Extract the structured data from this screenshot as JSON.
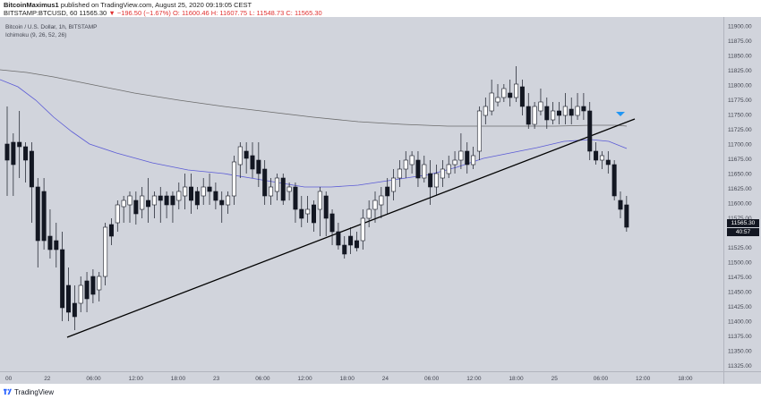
{
  "header": {
    "author": "BitcoinMaximus1",
    "published": "published on TradingView.com, August 25, 2020 09:19:05 CEST",
    "symbol": "BITSTAMP:BTCUSD, 60",
    "last": "11565.30",
    "change": "▼ −196.50 (−1.67%)",
    "open": "O: 11600.46",
    "high": "H: 11607.75",
    "low": "L: 11548.73",
    "close": "C: 11565.30"
  },
  "legend": {
    "title": "Bitcoin / U.S. Dollar, 1h, BITSTAMP",
    "indicator": "Ichimoku (9, 26, 52, 26)"
  },
  "price_axis": {
    "ticks": [
      "11900.00",
      "11875.00",
      "11850.00",
      "11825.00",
      "11800.00",
      "11775.00",
      "11750.00",
      "11725.00",
      "11700.00",
      "11675.00",
      "11650.00",
      "11625.00",
      "11600.00",
      "11575.00",
      "11550.00",
      "11525.00",
      "11500.00",
      "11475.00",
      "11450.00",
      "11425.00",
      "11400.00",
      "11375.00",
      "11350.00",
      "11325.00"
    ],
    "current_price": "11565.30",
    "countdown": "40:57"
  },
  "time_axis": {
    "ticks": [
      "00",
      "22",
      "06:00",
      "12:00",
      "18:00",
      "23",
      "06:00",
      "12:00",
      "18:00",
      "24",
      "06:00",
      "12:00",
      "18:00",
      "25",
      "06:00",
      "12:00",
      "18:00"
    ]
  },
  "footer": {
    "brand": "TradingView"
  },
  "colors": {
    "background": "#d1d4dc",
    "candle_up": "#ffffff",
    "candle_down": "#131722",
    "ma_blue": "#5b5bd6",
    "ma_gray": "#6b6b6b",
    "trendline": "#000000",
    "arrow": "#2196f3"
  },
  "chart_data": {
    "type": "candlestick",
    "ylim": [
      11315,
      11915
    ],
    "candles_approx": "hourly BTCUSD, Aug 21 22:00 – Aug 25 08:00",
    "trendline": {
      "from": 11365,
      "to": 11735
    }
  }
}
